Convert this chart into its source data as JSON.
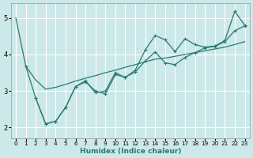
{
  "xlabel": "Humidex (Indice chaleur)",
  "bg_color": "#cce8e8",
  "grid_color": "#ffffff",
  "line_color": "#2a7a72",
  "xlim": [
    -0.5,
    23.5
  ],
  "ylim": [
    1.7,
    5.4
  ],
  "xticks": [
    0,
    1,
    2,
    3,
    4,
    5,
    6,
    7,
    8,
    9,
    10,
    11,
    12,
    13,
    14,
    15,
    16,
    17,
    18,
    19,
    20,
    21,
    22,
    23
  ],
  "yticks": [
    2,
    3,
    4,
    5
  ],
  "smooth_x": [
    0,
    1,
    2,
    3,
    4,
    5,
    6,
    7,
    8,
    9,
    10,
    11,
    12,
    13,
    14,
    15,
    16,
    17,
    18,
    19,
    20,
    21,
    22,
    23
  ],
  "smooth_y": [
    5.0,
    3.68,
    3.3,
    3.05,
    3.1,
    3.18,
    3.27,
    3.35,
    3.42,
    3.5,
    3.57,
    3.65,
    3.72,
    3.8,
    3.87,
    3.9,
    3.95,
    4.0,
    4.05,
    4.1,
    4.15,
    4.2,
    4.27,
    4.35
  ],
  "line_upper_x": [
    1,
    2,
    3,
    4,
    5,
    6,
    7,
    8,
    9,
    10,
    11,
    12,
    13,
    14,
    15,
    16,
    17,
    18,
    19,
    20,
    21,
    22,
    23
  ],
  "line_upper_y": [
    3.68,
    2.8,
    2.1,
    2.17,
    2.55,
    3.12,
    3.28,
    2.95,
    3.0,
    3.5,
    3.37,
    3.57,
    4.12,
    4.52,
    4.4,
    4.08,
    4.43,
    4.27,
    4.2,
    4.23,
    4.38,
    5.18,
    4.8
  ],
  "line_lower_x": [
    2,
    3,
    4,
    5,
    6,
    7,
    8,
    9,
    10,
    11,
    12,
    13,
    14,
    15,
    16,
    17,
    18,
    19,
    20,
    21,
    22,
    23
  ],
  "line_lower_y": [
    2.8,
    2.1,
    2.17,
    2.55,
    3.12,
    3.25,
    3.0,
    2.92,
    3.45,
    3.38,
    3.52,
    3.82,
    4.07,
    3.77,
    3.72,
    3.92,
    4.05,
    4.18,
    4.22,
    4.35,
    4.65,
    4.78
  ]
}
